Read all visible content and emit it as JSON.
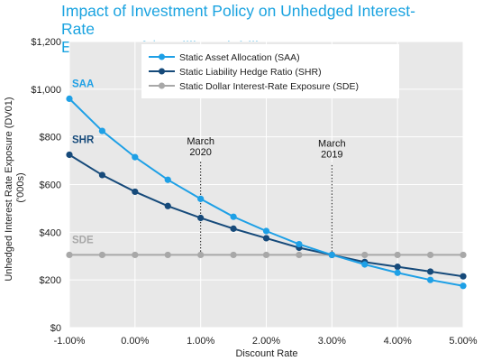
{
  "title_line1": "Impact of Investment Policy on Unhedged Interest-Rate",
  "title_line2": "Exposure of $1 Billion Liability",
  "chart_data": {
    "type": "line",
    "xlabel": "Discount Rate",
    "ylabel_line1": "Unhedged Interest Rate Exposure (DV01)",
    "ylabel_line2": "('000s)",
    "x": [
      -1.0,
      -0.5,
      0.0,
      0.5,
      1.0,
      1.5,
      2.0,
      2.5,
      3.0,
      3.5,
      4.0,
      4.5,
      5.0
    ],
    "xticks": [
      -1.0,
      0.0,
      1.0,
      2.0,
      3.0,
      4.0,
      5.0
    ],
    "xtick_labels": [
      "-1.00%",
      "0.00%",
      "1.00%",
      "2.00%",
      "3.00%",
      "4.00%",
      "5.00%"
    ],
    "xlim": [
      -1.0,
      5.0
    ],
    "yticks": [
      0,
      200,
      400,
      600,
      800,
      1000,
      1200
    ],
    "ytick_labels": [
      "$0",
      "$200",
      "$400",
      "$600",
      "$800",
      "$1,000",
      "$1,200"
    ],
    "ylim": [
      0,
      1200
    ],
    "grid": true,
    "legend_placement": "top-center",
    "background": "#e8e8e8",
    "series": [
      {
        "name": "Static Asset Allocation (SAA)",
        "short_label": "SAA",
        "color": "#1ea0e6",
        "values": [
          960,
          825,
          715,
          620,
          540,
          465,
          405,
          350,
          305,
          265,
          230,
          200,
          175
        ]
      },
      {
        "name": "Static Liability Hedge Ratio (SHR)",
        "short_label": "SHR",
        "color": "#164a7a",
        "values": [
          725,
          640,
          570,
          510,
          460,
          415,
          375,
          335,
          305,
          275,
          255,
          235,
          215
        ]
      },
      {
        "name": "Static Dollar Interest-Rate Exposure (SDE)",
        "short_label": "SDE",
        "color": "#a8a8a8",
        "values": [
          305,
          305,
          305,
          305,
          305,
          305,
          305,
          305,
          305,
          305,
          305,
          305,
          305
        ]
      }
    ],
    "annotations": [
      {
        "line1": "March",
        "line2": "2020",
        "x": 1.0,
        "y_from": 305,
        "y_to": 700
      },
      {
        "line1": "March",
        "line2": "2019",
        "x": 3.0,
        "y_from": 305,
        "y_to": 690
      }
    ]
  }
}
